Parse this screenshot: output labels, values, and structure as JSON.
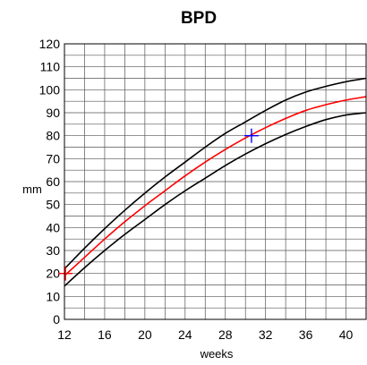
{
  "chart_data": {
    "type": "line",
    "title": "BPD",
    "xlabel": "weeks",
    "ylabel": "mm",
    "xlim": [
      12,
      42
    ],
    "ylim": [
      0,
      120
    ],
    "x_ticks": [
      12,
      16,
      20,
      24,
      28,
      32,
      36,
      40
    ],
    "y_ticks": [
      0,
      10,
      20,
      30,
      40,
      50,
      60,
      70,
      80,
      90,
      100,
      110,
      120
    ],
    "x_grid_step": 2,
    "y_grid_step": 5,
    "grid": true,
    "series": [
      {
        "color": "#000000",
        "x": [
          12,
          14,
          16,
          18,
          20,
          22,
          24,
          26,
          28,
          30,
          32,
          34,
          36,
          38,
          40,
          42
        ],
        "y": [
          22,
          31,
          39.5,
          47.5,
          55,
          62,
          68.5,
          75,
          81,
          86,
          91,
          95.5,
          99,
          101.5,
          103.5,
          105
        ]
      },
      {
        "color": "#ff0000",
        "x": [
          12,
          14,
          16,
          18,
          20,
          22,
          24,
          26,
          28,
          30,
          32,
          34,
          36,
          38,
          40,
          42
        ],
        "y": [
          19,
          27,
          35,
          42.5,
          49.5,
          56,
          62.5,
          68.5,
          74,
          79,
          83.5,
          87.5,
          91,
          93.5,
          95.5,
          97
        ]
      },
      {
        "color": "#000000",
        "x": [
          12,
          14,
          16,
          18,
          20,
          22,
          24,
          26,
          28,
          30,
          32,
          34,
          36,
          38,
          40,
          42
        ],
        "y": [
          14.5,
          22.5,
          30,
          37,
          43.5,
          50,
          56,
          61.5,
          67,
          72,
          76.5,
          80.5,
          84,
          87,
          89,
          90
        ]
      }
    ],
    "markers": [
      {
        "x": 12.1,
        "y": 20,
        "color": "#ff0000"
      },
      {
        "x": 30.6,
        "y": 80,
        "color": "#0000ff"
      }
    ]
  }
}
